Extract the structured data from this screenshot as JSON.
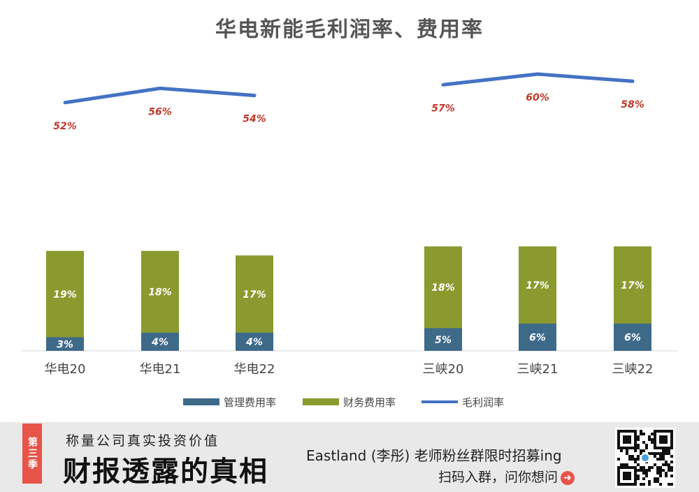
{
  "chart_data": {
    "type": "bar",
    "title": "华电新能毛利润率、费用率",
    "categories": [
      "华电20",
      "华电21",
      "华电22",
      "三峡20",
      "三峡21",
      "三峡22"
    ],
    "series": [
      {
        "name": "管理费用率",
        "kind": "stacked-bar",
        "values": [
          3,
          4,
          4,
          5,
          6,
          6
        ],
        "labels": [
          "3%",
          "4%",
          "4%",
          "5%",
          "6%",
          "6%"
        ],
        "color": "#3e6a8a"
      },
      {
        "name": "财务费用率",
        "kind": "stacked-bar",
        "values": [
          19,
          18,
          17,
          18,
          17,
          17
        ],
        "labels": [
          "19%",
          "18%",
          "17%",
          "18%",
          "17%",
          "17%"
        ],
        "color": "#8b9a2e"
      },
      {
        "name": "毛利润率",
        "kind": "line",
        "values": [
          52,
          56,
          54,
          57,
          60,
          58
        ],
        "labels": [
          "52%",
          "56%",
          "54%",
          "57%",
          "60%",
          "58%"
        ],
        "color": "#4472c4"
      }
    ],
    "legend_position": "bottom",
    "grid": false
  },
  "footer": {
    "season_tag": "第三季",
    "slogan_small": "称量公司真实投资价值",
    "slogan_big": "财报透露的真相",
    "recruit": "Eastland (李彤) 老师粉丝群限时招募ing",
    "scan": "扫码入群，问你想问",
    "arrow_icon": "arrow-right-icon",
    "qr_icon": "qr-code-icon"
  }
}
